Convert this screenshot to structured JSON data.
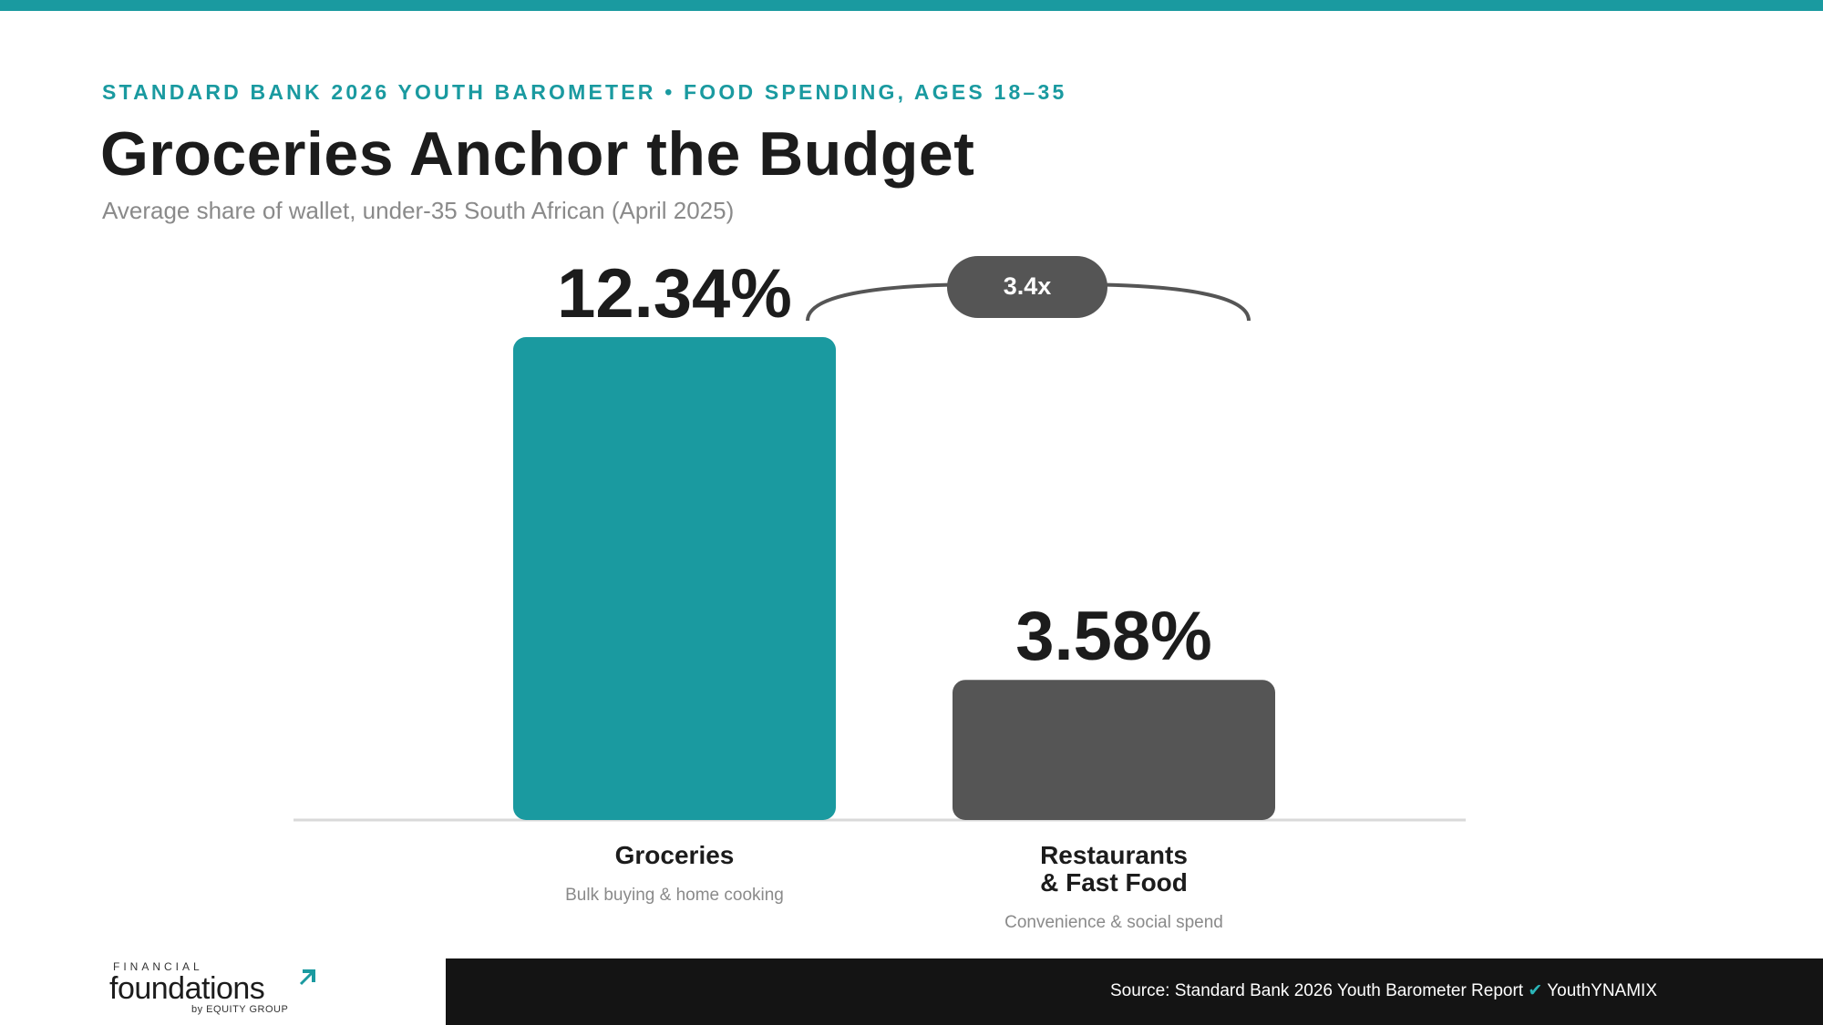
{
  "header": {
    "kicker": "STANDARD BANK 2026 YOUTH BAROMETER • FOOD SPENDING, AGES 18–35",
    "title": "Groceries Anchor the Budget",
    "subtitle": "Average share of wallet, under-35 South African (April 2025)"
  },
  "chart_data": {
    "type": "bar",
    "title": "Groceries Anchor the Budget",
    "subtitle": "Average share of wallet, under-35 South African (April 2025)",
    "categories": [
      "Groceries",
      "Restaurants & Fast Food"
    ],
    "category_lines": [
      [
        "Groceries"
      ],
      [
        "Restaurants",
        "& Fast Food"
      ]
    ],
    "descriptions": [
      "Bulk buying & home cooking",
      "Convenience & social spend"
    ],
    "values": [
      12.34,
      3.58
    ],
    "value_labels": [
      "12.34%",
      "3.58%"
    ],
    "colors": [
      "#1a9aa0",
      "#555555"
    ],
    "ratio_label": "3.4x",
    "ylim": [
      0,
      12.34
    ],
    "grid": false,
    "legend": "none"
  },
  "footer": {
    "logo": {
      "top": "FINANCIAL",
      "main": "foundations",
      "sub": "by EQUITY GROUP"
    },
    "source_text": "Source: Standard Bank 2026 Youth Barometer Report",
    "check_glyph": "✔",
    "source_brand": "YouthYNAMIX"
  },
  "colors": {
    "accent": "#1a9aa0",
    "secondary": "#555555",
    "text": "#1c1c1c",
    "footer_bg": "#141414"
  }
}
